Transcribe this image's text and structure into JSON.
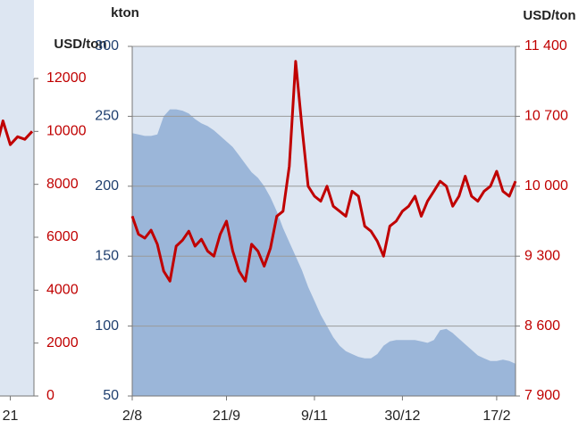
{
  "chart_data": [
    {
      "type": "line",
      "y2_label": "USD/ton",
      "categories": [
        null,
        null,
        null,
        "21",
        null,
        null,
        null
      ],
      "series": [
        {
          "color": "#c00000",
          "axis": "y2",
          "values": [
            9600,
            9300,
            10400,
            9500,
            9800,
            9700,
            10000
          ]
        }
      ],
      "y2lim": [
        0,
        12000
      ],
      "y2ticks": [
        0,
        2000,
        4000,
        6000,
        8000,
        10000,
        12000
      ]
    },
    {
      "type": "line",
      "y_label": "kton",
      "y2_label": "USD/ton",
      "categories": [
        "2/8",
        null,
        null,
        null,
        null,
        null,
        null,
        null,
        null,
        null,
        null,
        null,
        null,
        null,
        null,
        "21/9",
        null,
        null,
        null,
        null,
        null,
        null,
        null,
        null,
        null,
        null,
        null,
        null,
        null,
        "9/11",
        null,
        null,
        null,
        null,
        null,
        null,
        null,
        null,
        null,
        null,
        null,
        null,
        null,
        "30/12",
        null,
        null,
        null,
        null,
        null,
        null,
        null,
        null,
        null,
        null,
        null,
        null,
        null,
        null,
        "17/2",
        null,
        null,
        null
      ],
      "series": [
        {
          "type": "area",
          "color": "#9bb6d9",
          "values": [
            238,
            237,
            236,
            236,
            237,
            250,
            255,
            255,
            254,
            252,
            248,
            245,
            243,
            240,
            236,
            232,
            228,
            222,
            216,
            210,
            206,
            200,
            192,
            182,
            170,
            160,
            150,
            140,
            128,
            118,
            108,
            100,
            92,
            86,
            82,
            80,
            78,
            77,
            77,
            80,
            86,
            89,
            90,
            90,
            90,
            90,
            89,
            88,
            90,
            97,
            98,
            95,
            91,
            87,
            83,
            79,
            77,
            75,
            75,
            76,
            75,
            73
          ]
        },
        {
          "color": "#c00000",
          "axis": "y2",
          "values": [
            9700,
            9520,
            9480,
            9560,
            9420,
            9150,
            9050,
            9400,
            9460,
            9550,
            9400,
            9470,
            9350,
            9300,
            9520,
            9650,
            9350,
            9150,
            9050,
            9420,
            9350,
            9200,
            9380,
            9700,
            9750,
            10200,
            11250,
            10600,
            10000,
            9900,
            9850,
            10000,
            9800,
            9750,
            9700,
            9950,
            9900,
            9600,
            9550,
            9450,
            9300,
            9600,
            9650,
            9750,
            9800,
            9900,
            9700,
            9850,
            9950,
            10050,
            10000,
            9800,
            9900,
            10100,
            9900,
            9850,
            9950,
            10000,
            10150,
            9950,
            9900,
            10050
          ]
        }
      ],
      "ylim": [
        50,
        300
      ],
      "yticks": [
        50,
        100,
        150,
        200,
        250,
        300
      ],
      "y2lim": [
        7900,
        11400
      ],
      "y2ticks": [
        {
          "value": 7900,
          "label": "7 900"
        },
        {
          "value": 8600,
          "label": "8 600"
        },
        {
          "value": 9300,
          "label": "9 300"
        },
        {
          "value": 10000,
          "label": "10 000"
        },
        {
          "value": 10700,
          "label": "10 700"
        },
        {
          "value": 11400,
          "label": "11 400"
        }
      ],
      "grid": true
    }
  ]
}
